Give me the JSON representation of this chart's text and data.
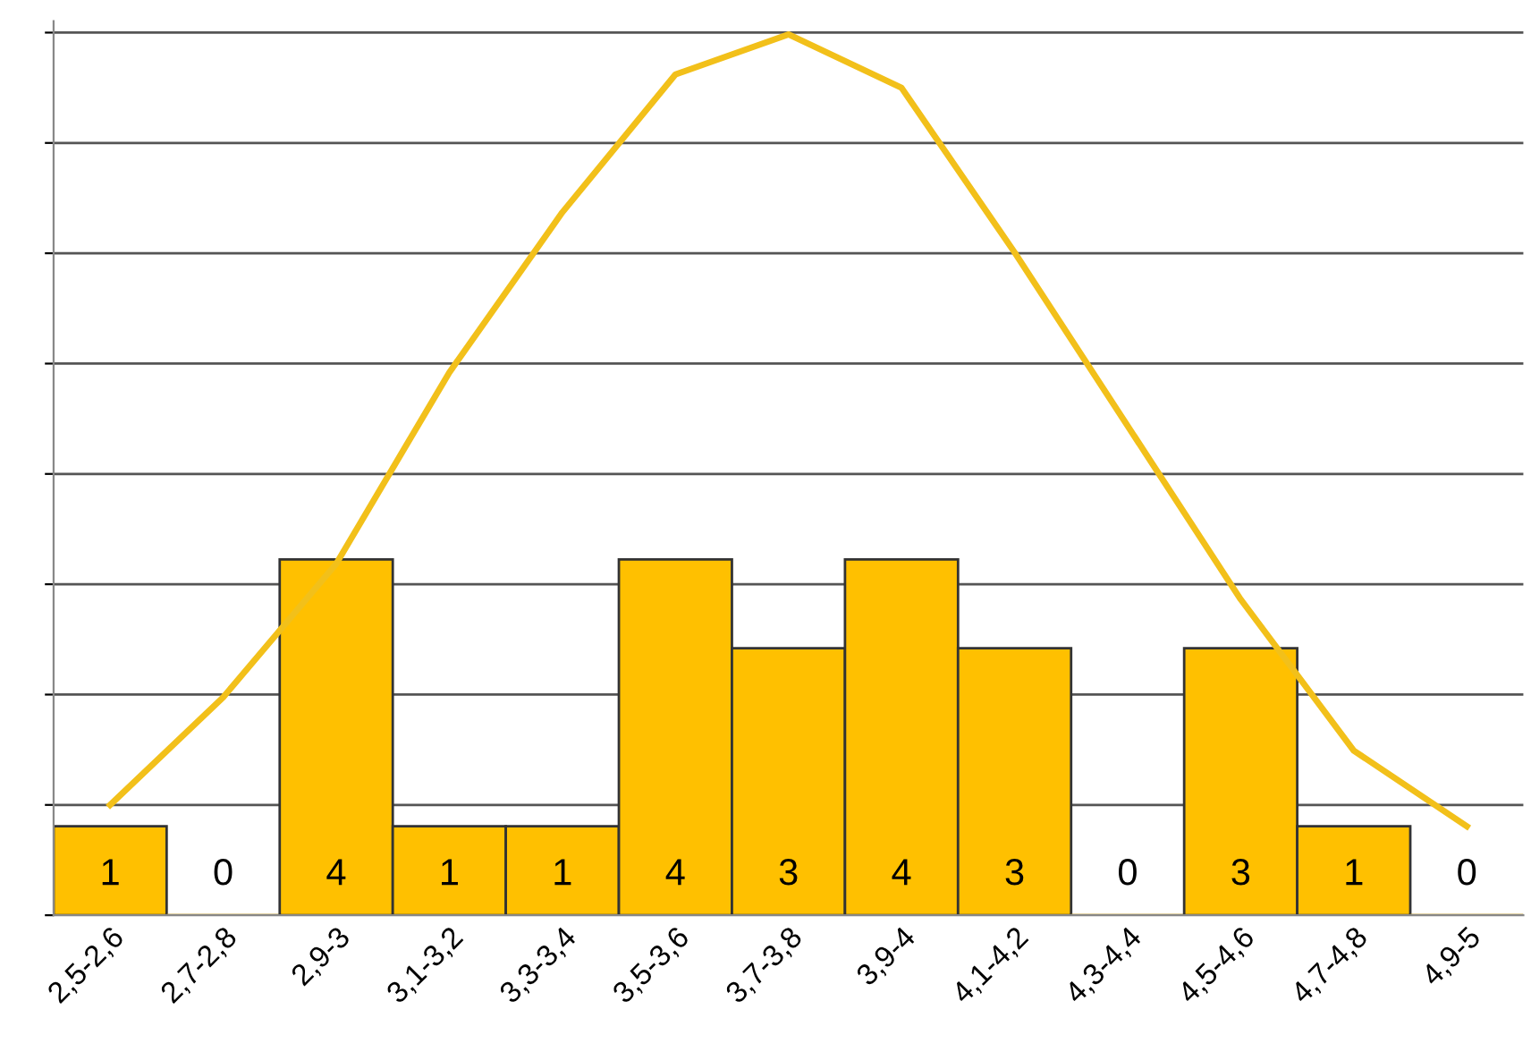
{
  "chart_data": {
    "type": "bar",
    "categories": [
      "2,5-2,6",
      "2,7-2,8",
      "2,9-3",
      "3,1-3,2",
      "3,3-3,4",
      "3,5-3,6",
      "3,7-3,8",
      "3,9-4",
      "4,1-4,2",
      "4,3-4,4",
      "4,5-4,6",
      "4,7-4,8",
      "4,9-5"
    ],
    "series": [
      {
        "color": "#ffc000",
        "values": [
          1,
          0,
          4,
          1,
          1,
          4,
          3,
          4,
          3,
          0,
          3,
          1,
          0
        ],
        "value_labels": [
          "1",
          "0",
          "4",
          "1",
          "1",
          "4",
          "3",
          "4",
          "3",
          "0",
          "3",
          "1",
          "0"
        ]
      },
      {
        "type": "line",
        "color": "#f2c01a",
        "values": [
          1.24,
          2.45,
          3.95,
          6.1,
          7.9,
          9.45,
          9.9,
          9.3,
          7.45,
          5.5,
          3.55,
          1.85,
          1.0
        ]
      }
    ],
    "ylim": [
      0,
      10.05
    ],
    "yticks": [
      {
        "value": 0,
        "label": null
      },
      {
        "value": 1.24,
        "label": null
      },
      {
        "value": 2.48,
        "label": null
      },
      {
        "value": 3.72,
        "label": null
      },
      {
        "value": 4.96,
        "label": null
      },
      {
        "value": 6.2,
        "label": null
      },
      {
        "value": 7.44,
        "label": null
      },
      {
        "value": 8.68,
        "label": null
      },
      {
        "value": 9.92,
        "label": null
      }
    ],
    "grid": "y",
    "tick_labels": "x"
  }
}
